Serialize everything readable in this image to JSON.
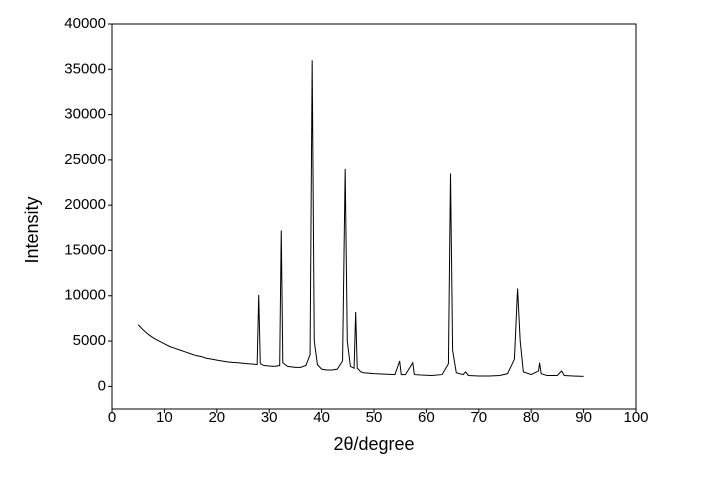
{
  "chart_data": {
    "type": "line",
    "x_label": "2θ/degree",
    "y_label": "Intensity",
    "x": [
      5,
      6,
      7,
      8,
      9,
      10,
      11,
      12,
      13,
      14,
      15,
      16,
      17,
      18,
      19,
      20,
      21,
      22,
      23,
      24,
      25,
      26,
      27,
      27.7,
      28.0,
      28.3,
      29,
      30,
      31,
      32,
      32.3,
      32.6,
      33.5,
      35,
      36,
      37,
      37.8,
      38.2,
      38.6,
      39.2,
      40,
      41,
      42,
      43,
      44,
      44.5,
      44.9,
      45.5,
      46.2,
      46.5,
      46.8,
      47.5,
      48,
      50,
      52,
      54,
      54.9,
      55.2,
      56,
      57.4,
      57.7,
      59,
      61,
      63,
      64.2,
      64.6,
      65,
      65.7,
      67,
      67.5,
      68,
      70,
      72,
      74,
      75.5,
      76.8,
      77.4,
      77.9,
      78.5,
      80,
      81.4,
      81.6,
      81.9,
      83,
      85,
      85.8,
      86.3,
      88,
      90
    ],
    "values": [
      6800,
      6200,
      5700,
      5300,
      5000,
      4700,
      4400,
      4200,
      4000,
      3800,
      3600,
      3400,
      3300,
      3100,
      3000,
      2900,
      2800,
      2700,
      2650,
      2600,
      2550,
      2500,
      2450,
      2400,
      10100,
      2500,
      2300,
      2250,
      2200,
      2300,
      17200,
      2600,
      2200,
      2100,
      2100,
      2300,
      3500,
      36000,
      5000,
      2400,
      1900,
      1800,
      1800,
      1900,
      2800,
      24000,
      5000,
      2200,
      2000,
      8200,
      2000,
      1600,
      1500,
      1400,
      1350,
      1300,
      2800,
      1300,
      1300,
      2600,
      1300,
      1250,
      1200,
      1300,
      2500,
      23500,
      4000,
      1500,
      1300,
      1600,
      1200,
      1150,
      1150,
      1200,
      1400,
      3000,
      10800,
      5000,
      1600,
      1300,
      1700,
      2600,
      1400,
      1200,
      1200,
      1700,
      1200,
      1150,
      1100
    ],
    "color": "#000000",
    "xlim": [
      0,
      100
    ],
    "xticks": [
      0,
      10,
      20,
      30,
      40,
      50,
      60,
      70,
      80,
      90,
      100
    ],
    "ylim": [
      -2500,
      40000
    ],
    "yticks": [
      0,
      5000,
      10000,
      15000,
      20000,
      25000,
      30000,
      35000,
      40000
    ]
  }
}
